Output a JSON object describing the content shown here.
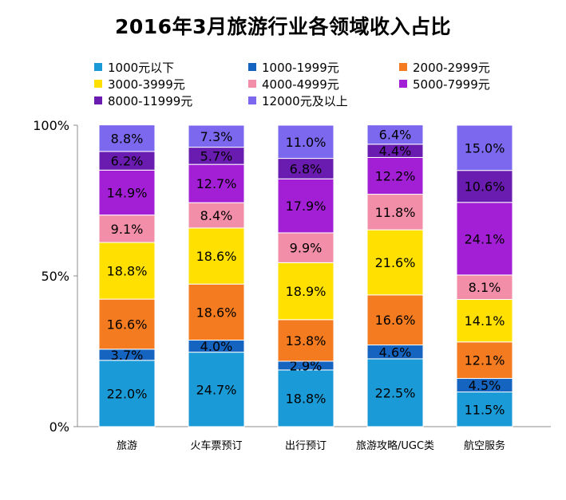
{
  "chart_data": {
    "type": "bar",
    "stacked": true,
    "title": "2016年3月旅游行业各领域收入占比",
    "categories": [
      "旅游",
      "火车票预订",
      "出行预订",
      "旅游攻略/UGC类",
      "航空服务"
    ],
    "ylim": [
      0,
      100
    ],
    "y_ticks": [
      "0%",
      "50%",
      "100%"
    ],
    "y_tick_values": [
      0,
      50,
      100
    ],
    "legend_position": "top",
    "series": [
      {
        "name": "1000元以下",
        "color": "#1a9ad6",
        "values": [
          22.0,
          24.7,
          18.8,
          22.5,
          11.5
        ]
      },
      {
        "name": "1000-1999元",
        "color": "#1565c0",
        "values": [
          3.7,
          4.0,
          2.9,
          4.6,
          4.5
        ]
      },
      {
        "name": "2000-2999元",
        "color": "#f47b20",
        "values": [
          16.6,
          18.6,
          13.8,
          16.6,
          12.1
        ]
      },
      {
        "name": "3000-3999元",
        "color": "#ffe000",
        "values": [
          18.8,
          18.6,
          18.9,
          21.6,
          14.1
        ]
      },
      {
        "name": "4000-4999元",
        "color": "#f28ea8",
        "values": [
          9.1,
          8.4,
          9.9,
          11.8,
          8.1
        ]
      },
      {
        "name": "5000-7999元",
        "color": "#a21fd6",
        "values": [
          14.9,
          12.7,
          17.9,
          12.2,
          24.1
        ]
      },
      {
        "name": "8000-11999元",
        "color": "#6a1cb0",
        "values": [
          6.2,
          5.7,
          6.8,
          4.4,
          10.6
        ]
      },
      {
        "name": "12000元及以上",
        "color": "#7b68ee",
        "values": [
          8.8,
          7.3,
          11.0,
          6.4,
          15.0
        ]
      }
    ],
    "value_labels": [
      [
        "22.0%",
        "24.7%",
        "18.8%",
        "22.5%",
        "11.5%"
      ],
      [
        "3.7%",
        "4.0%",
        "2.9%",
        "4.6%",
        "4.5%"
      ],
      [
        "16.6%",
        "18.6%",
        "13.8%",
        "16.6%",
        "12.1%"
      ],
      [
        "18.8%",
        "18.6%",
        "18.9%",
        "21.6%",
        "14.1%"
      ],
      [
        "9.1%",
        "8.4%",
        "9.9%",
        "11.8%",
        "8.1%"
      ],
      [
        "14.9%",
        "12.7%",
        "17.9%",
        "12.2%",
        "24.1%"
      ],
      [
        "6.2%",
        "5.7%",
        "6.8%",
        "4.4%",
        "10.6%"
      ],
      [
        "8.8%",
        "7.3%",
        "11.0%",
        "6.4%",
        "15.0%"
      ]
    ]
  }
}
